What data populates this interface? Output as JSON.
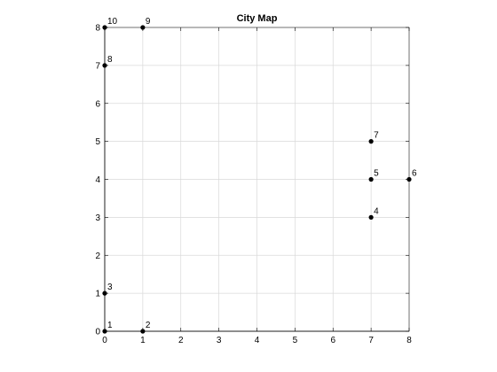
{
  "chart_data": {
    "type": "scatter",
    "title": "City Map",
    "xlabel": "",
    "ylabel": "",
    "xlim": [
      0,
      8
    ],
    "ylim": [
      0,
      8
    ],
    "x_ticks": [
      0,
      1,
      2,
      3,
      4,
      5,
      6,
      7,
      8
    ],
    "y_ticks": [
      0,
      1,
      2,
      3,
      4,
      5,
      6,
      7,
      8
    ],
    "x_tick_labels": [
      "0",
      "1",
      "2",
      "3",
      "4",
      "5",
      "6",
      "7",
      "8"
    ],
    "y_tick_labels": [
      "0",
      "1",
      "2",
      "3",
      "4",
      "5",
      "6",
      "7",
      "8"
    ],
    "grid": true,
    "legend": "none",
    "marker_color": "#000000",
    "grid_color": "#d9d9d9",
    "points": [
      {
        "label": "1",
        "x": 0,
        "y": 0
      },
      {
        "label": "2",
        "x": 1,
        "y": 0
      },
      {
        "label": "3",
        "x": 0,
        "y": 1
      },
      {
        "label": "4",
        "x": 7,
        "y": 3
      },
      {
        "label": "5",
        "x": 7,
        "y": 4
      },
      {
        "label": "6",
        "x": 8,
        "y": 4
      },
      {
        "label": "7",
        "x": 7,
        "y": 5
      },
      {
        "label": "8",
        "x": 0,
        "y": 7
      },
      {
        "label": "9",
        "x": 1,
        "y": 8
      },
      {
        "label": "10",
        "x": 0,
        "y": 8
      }
    ]
  }
}
